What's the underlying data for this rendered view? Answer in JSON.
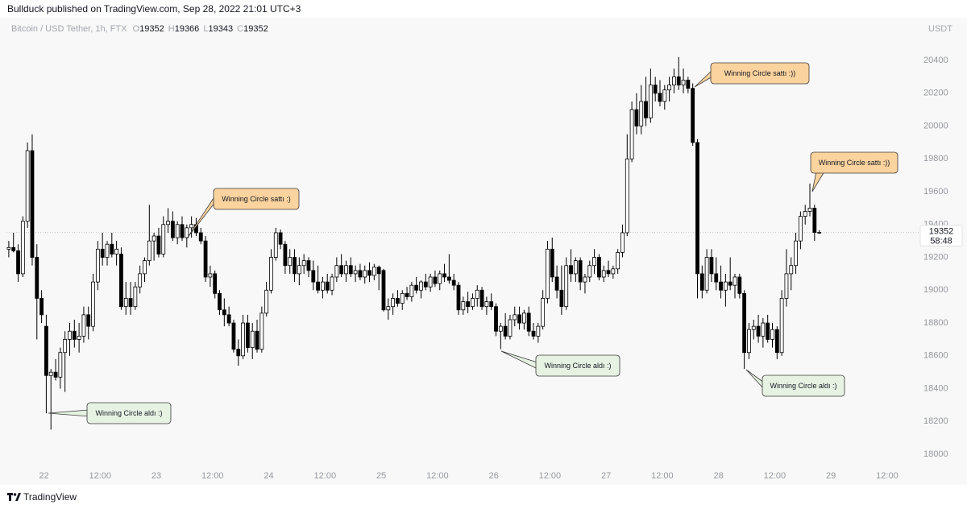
{
  "header": {
    "title": "Bullduck published on TradingView.com, Sep 28, 2022 21:01 UTC+3"
  },
  "footer": {
    "brand": "TradingView"
  },
  "chart_data": {
    "type": "candlestick",
    "symbol": "Bitcoin / USD Tether, 1h, FTX",
    "ohlc": [
      {
        "label": "O",
        "value": 19352
      },
      {
        "label": "H",
        "value": 19366
      },
      {
        "label": "L",
        "value": 19343
      },
      {
        "label": "C",
        "value": 19352
      }
    ],
    "y_unit": "USDT",
    "last_price": 19352,
    "countdown": "58:48",
    "up_color": "#ffffff",
    "down_color": "#000000",
    "grid": false,
    "xlim": [
      0,
      193
    ],
    "xticks": [
      {
        "value": 8,
        "label": "22"
      },
      {
        "value": 20,
        "label": "12:00"
      },
      {
        "value": 32,
        "label": "23"
      },
      {
        "value": 44,
        "label": "12:00"
      },
      {
        "value": 56,
        "label": "24"
      },
      {
        "value": 68,
        "label": "12:00"
      },
      {
        "value": 80,
        "label": "25"
      },
      {
        "value": 92,
        "label": "12:00"
      },
      {
        "value": 104,
        "label": "26"
      },
      {
        "value": 116,
        "label": "12:00"
      },
      {
        "value": 128,
        "label": "27"
      },
      {
        "value": 140,
        "label": "12:00"
      },
      {
        "value": 152,
        "label": "28"
      },
      {
        "value": 164,
        "label": "12:00"
      },
      {
        "value": 176,
        "label": "29"
      },
      {
        "value": 188,
        "label": "12:00"
      }
    ],
    "ylim": [
      17912,
      20670
    ],
    "yticks": [
      18000,
      18200,
      18400,
      18600,
      18800,
      19000,
      19200,
      19400,
      19600,
      19800,
      20000,
      20200,
      20400
    ],
    "open": [
      19250,
      19260,
      19240,
      19100,
      19420,
      19850,
      19200,
      18950,
      18780,
      18480,
      18500,
      18470,
      18620,
      18700,
      18750,
      18700,
      18720,
      18850,
      18780,
      19050,
      19250,
      19200,
      19280,
      19220,
      19220,
      18900,
      18950,
      18900,
      19020,
      19100,
      19180,
      19300,
      19330,
      19220,
      19400,
      19420,
      19320,
      19400,
      19320,
      19380,
      19400,
      19350,
      19300,
      19080,
      19100,
      18980,
      18880,
      18850,
      18800,
      18640,
      18600,
      18800,
      18650,
      18750,
      18640,
      18860,
      19000,
      19200,
      19350,
      19280,
      19150,
      19200,
      19100,
      19150,
      19180,
      19120,
      19050,
      19000,
      19050,
      19000,
      19080,
      19150,
      19100,
      19150,
      19100,
      19120,
      19080,
      19120,
      19090,
      19140,
      19120,
      18880,
      18900,
      18950,
      18920,
      18980,
      18960,
      19030,
      19000,
      19050,
      19020,
      19080,
      19040,
      19100,
      19080,
      19060,
      19030,
      18880,
      18930,
      18900,
      18950,
      19000,
      18900,
      18930,
      18900,
      18750,
      18780,
      18720,
      18820,
      18850,
      18800,
      18860,
      18750,
      18720,
      18780,
      18950,
      19250,
      19080,
      19000,
      18900,
      19150,
      19100,
      19180,
      19050,
      19080,
      19150,
      19200,
      19080,
      19120,
      19100,
      19130,
      19230,
      19350,
      19800,
      20100,
      20000,
      20150,
      20050,
      20250,
      20200,
      20150,
      20220,
      20250,
      20300,
      20250,
      20280,
      20230,
      19900,
      19100,
      19000,
      19200,
      19100,
      19050,
      19000,
      19050,
      19030,
      19080,
      18980,
      18620,
      18760,
      18780,
      18720,
      18800,
      18700,
      18760,
      18620,
      18950,
      19100,
      19150,
      19300,
      19450,
      19480,
      19500,
      19352
    ],
    "high": [
      19300,
      19350,
      19280,
      19450,
      19900,
      19950,
      19280,
      19000,
      18850,
      18520,
      18580,
      18650,
      18750,
      18800,
      18820,
      18800,
      18900,
      18900,
      19100,
      19300,
      19350,
      19300,
      19350,
      19300,
      19260,
      19050,
      19050,
      19050,
      19150,
      19200,
      19520,
      19350,
      19380,
      19450,
      19500,
      19480,
      19420,
      19450,
      19400,
      19450,
      19440,
      19380,
      19330,
      19150,
      19120,
      19000,
      18950,
      18900,
      18820,
      18700,
      18850,
      18850,
      18800,
      18820,
      18900,
      19050,
      19250,
      19380,
      19370,
      19300,
      19250,
      19250,
      19200,
      19220,
      19200,
      19180,
      19150,
      19080,
      19100,
      19100,
      19200,
      19220,
      19180,
      19200,
      19150,
      19160,
      19150,
      19170,
      19160,
      19150,
      19130,
      18950,
      18980,
      19000,
      19000,
      19020,
      19050,
      19080,
      19060,
      19100,
      19100,
      19120,
      19120,
      19160,
      19220,
      19100,
      19050,
      18960,
      18990,
      18980,
      19030,
      19020,
      18960,
      18980,
      18920,
      18800,
      18860,
      18850,
      18900,
      18900,
      18880,
      18900,
      18800,
      18800,
      19000,
      19300,
      19320,
      19150,
      19150,
      19200,
      19250,
      19200,
      19200,
      19100,
      19180,
      19250,
      19220,
      19150,
      19180,
      19150,
      19250,
      19400,
      19950,
      20150,
      20200,
      20250,
      20300,
      20350,
      20300,
      20280,
      20250,
      20300,
      20350,
      20420,
      20350,
      20300,
      20260,
      19920,
      19150,
      19250,
      19250,
      19200,
      19150,
      19100,
      19200,
      19100,
      19100,
      19000,
      18800,
      18820,
      18850,
      18830,
      18850,
      18800,
      18780,
      19000,
      19250,
      19200,
      19350,
      19480,
      19520,
      19650,
      19520,
      19366
    ],
    "low": [
      19200,
      19230,
      19050,
      19080,
      19380,
      19150,
      18700,
      18800,
      18250,
      18150,
      18450,
      18400,
      18380,
      18600,
      18650,
      18620,
      18680,
      18700,
      18750,
      19000,
      19150,
      19150,
      19200,
      19150,
      18880,
      18850,
      18850,
      18880,
      18980,
      19050,
      19150,
      19180,
      19200,
      19200,
      19350,
      19300,
      19280,
      19300,
      19260,
      19320,
      19330,
      19280,
      19050,
      19020,
      18950,
      18850,
      18780,
      18780,
      18620,
      18540,
      18580,
      18620,
      18580,
      18620,
      18620,
      18840,
      18980,
      19180,
      19250,
      19100,
      19100,
      19050,
      19030,
      19100,
      19080,
      19000,
      18980,
      18950,
      18980,
      18970,
      19050,
      19080,
      19050,
      19080,
      19050,
      19060,
      19040,
      19050,
      19060,
      19000,
      18870,
      18820,
      18850,
      18900,
      18880,
      18940,
      18930,
      18980,
      18950,
      19000,
      18990,
      19020,
      19000,
      19050,
      19040,
      19000,
      18850,
      18850,
      18860,
      18880,
      18900,
      18880,
      18850,
      18880,
      18720,
      18640,
      18700,
      18700,
      18780,
      18760,
      18760,
      18720,
      18700,
      18680,
      18760,
      18920,
      19050,
      18950,
      18850,
      18880,
      19050,
      19050,
      19000,
      18980,
      19050,
      19100,
      19060,
      19050,
      19080,
      19070,
      19100,
      19200,
      19330,
      19780,
      19950,
      19950,
      20000,
      20020,
      20150,
      20120,
      20100,
      20150,
      20200,
      20220,
      20200,
      20200,
      19880,
      18950,
      18950,
      18980,
      19050,
      19000,
      18950,
      18900,
      19000,
      18950,
      18950,
      18520,
      18580,
      18700,
      18680,
      18650,
      18680,
      18650,
      18580,
      18600,
      18900,
      19000,
      19100,
      19250,
      19400,
      19450,
      19300,
      19343
    ],
    "close": [
      19260,
      19240,
      19100,
      19420,
      19850,
      19200,
      18950,
      18850,
      18480,
      18500,
      18470,
      18620,
      18700,
      18750,
      18700,
      18720,
      18850,
      18780,
      19050,
      19250,
      19200,
      19280,
      19220,
      19250,
      18900,
      18950,
      18900,
      19020,
      19100,
      19180,
      19300,
      19330,
      19220,
      19400,
      19420,
      19320,
      19400,
      19320,
      19380,
      19400,
      19350,
      19300,
      19080,
      19100,
      18980,
      18880,
      18850,
      18800,
      18640,
      18600,
      18800,
      18650,
      18750,
      18640,
      18860,
      19000,
      19200,
      19350,
      19280,
      19150,
      19200,
      19100,
      19150,
      19180,
      19120,
      19050,
      19000,
      19050,
      19000,
      19080,
      19150,
      19100,
      19150,
      19100,
      19120,
      19080,
      19120,
      19090,
      19140,
      19100,
      18880,
      18900,
      18950,
      18920,
      18980,
      18960,
      19030,
      19000,
      19050,
      19020,
      19080,
      19040,
      19100,
      19080,
      19060,
      19030,
      18880,
      18930,
      18900,
      18950,
      19000,
      18900,
      18930,
      18900,
      18750,
      18780,
      18720,
      18820,
      18850,
      18800,
      18860,
      18750,
      18720,
      18780,
      18950,
      19250,
      19080,
      19000,
      18900,
      19150,
      19100,
      19180,
      19050,
      19080,
      19150,
      19200,
      19080,
      19120,
      19100,
      19130,
      19230,
      19350,
      19800,
      20100,
      20000,
      20150,
      20050,
      20250,
      20200,
      20150,
      20220,
      20250,
      20300,
      20250,
      20280,
      20230,
      19900,
      19100,
      19000,
      19200,
      19100,
      19050,
      19000,
      19050,
      19030,
      19080,
      18980,
      18620,
      18760,
      18780,
      18720,
      18800,
      18700,
      18760,
      18620,
      18950,
      19100,
      19150,
      19300,
      19450,
      19480,
      19500,
      19352,
      19352
    ],
    "annotations": [
      {
        "text": "Winning Circle aldı :)",
        "color": "#e6f2e2"
      },
      {
        "text": "Winning Circle sattı :)",
        "color": "#fbd39e"
      },
      {
        "text": "Winning Circle aldı :)",
        "color": "#e6f2e2"
      },
      {
        "text": "Winning Circle sattı :))",
        "color": "#fbd39e"
      },
      {
        "text": "Winning Circle sattı :))",
        "color": "#fbd39e"
      },
      {
        "text": "Winning Circle aldı :)",
        "color": "#e6f2e2"
      }
    ]
  }
}
